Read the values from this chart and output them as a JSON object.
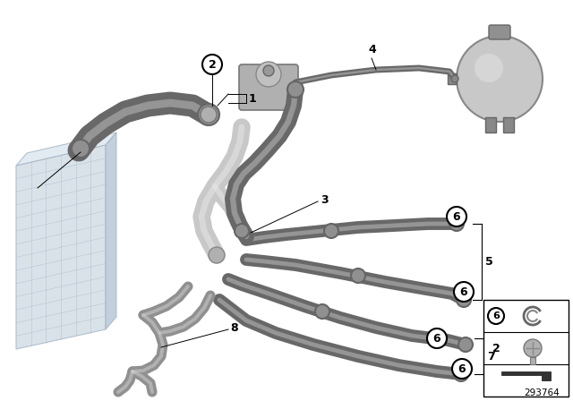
{
  "background_color": "#ffffff",
  "part_number": "293764",
  "hose_dark": "#5a5a5a",
  "hose_mid": "#909090",
  "hose_light": "#c0c0c0",
  "hose_white": "#e0e0e0",
  "radiator_face": "#d4dde6",
  "radiator_edge": "#a8b8c8",
  "radiator_top": "#dde8f0",
  "radiator_side": "#b8c8d8",
  "tank_color": "#c8c8c8",
  "tank_edge": "#888888",
  "label_color": "#000000",
  "line_color": "#000000",
  "callout_fill": "#ffffff",
  "legend_box_color": "#000000"
}
